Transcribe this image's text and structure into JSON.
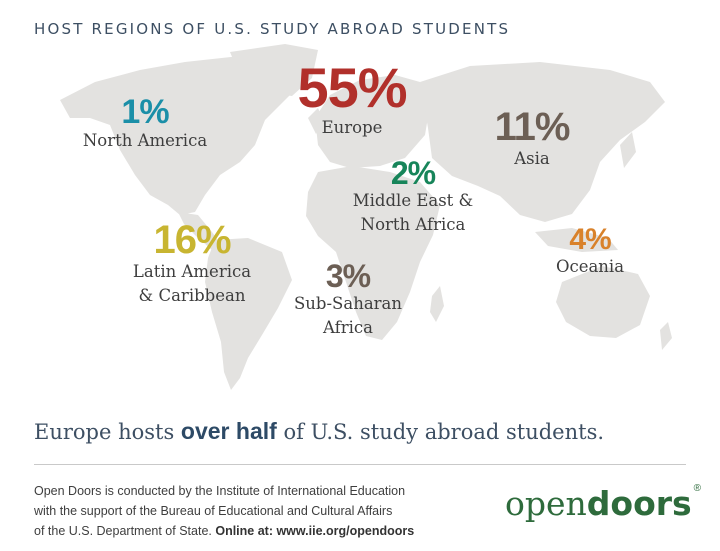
{
  "title": "HOST REGIONS OF U.S. STUDY ABROAD STUDENTS",
  "chart_data": {
    "type": "map",
    "title": "HOST REGIONS OF U.S. STUDY ABROAD STUDENTS",
    "unit": "%",
    "series": [
      {
        "categories": [
          "Europe",
          "Latin America & Caribbean",
          "Asia",
          "Oceania",
          "Sub-Saharan Africa",
          "Middle East & North Africa",
          "North America"
        ],
        "values": [
          55,
          16,
          11,
          4,
          3,
          2,
          1
        ]
      }
    ]
  },
  "regions": [
    {
      "key": "north_america",
      "pct": "1%",
      "name_lines": [
        "North America"
      ],
      "color": "#1b8fa8"
    },
    {
      "key": "europe",
      "pct": "55%",
      "name_lines": [
        "Europe"
      ],
      "color": "#b1302b"
    },
    {
      "key": "asia",
      "pct": "11%",
      "name_lines": [
        "Asia"
      ],
      "color": "#6c5f55"
    },
    {
      "key": "middle_east",
      "pct": "2%",
      "name_lines": [
        "Middle East &",
        "North Africa"
      ],
      "color": "#17855a"
    },
    {
      "key": "latin_america",
      "pct": "16%",
      "name_lines": [
        "Latin America",
        "& Caribbean"
      ],
      "color": "#c8b531"
    },
    {
      "key": "sub_saharan",
      "pct": "3%",
      "name_lines": [
        "Sub-Saharan",
        "Africa"
      ],
      "color": "#6c5f55"
    },
    {
      "key": "oceania",
      "pct": "4%",
      "name_lines": [
        "Oceania"
      ],
      "color": "#d9822b"
    }
  ],
  "headline": {
    "before": "Europe hosts ",
    "bold": "over half",
    "after": " of U.S. study abroad students."
  },
  "footer": {
    "line1": "Open Doors is conducted by the Institute of International Education",
    "line2": "with the support of the Bureau of Educational and Cultural Affairs",
    "line3_plain": "of the U.S. Department of State. ",
    "line3_bold": "Online at: www.iie.org/opendoors"
  },
  "logo": {
    "open": "open",
    "doors": "doors",
    "mark": "®"
  },
  "colors": {
    "map_land": "#e3e2e0",
    "title": "#3d4f63",
    "logo": "#2e6b3c"
  }
}
